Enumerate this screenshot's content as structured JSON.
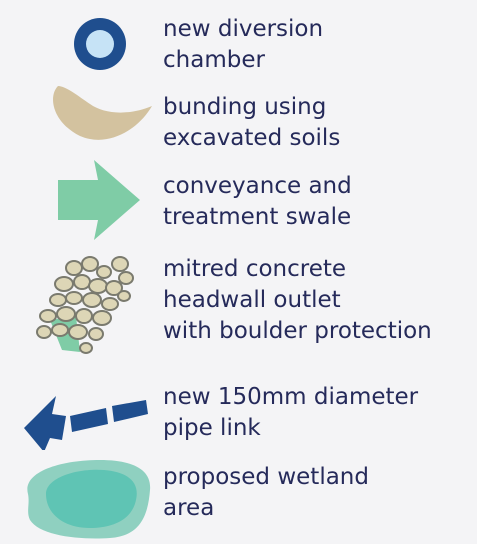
{
  "legend": {
    "items": [
      {
        "id": "diversion-chamber",
        "icon": "ring-icon",
        "lines": [
          "new diversion",
          "chamber"
        ]
      },
      {
        "id": "bunding",
        "icon": "crescent-icon",
        "lines": [
          "bunding using",
          "excavated soils"
        ]
      },
      {
        "id": "swale",
        "icon": "arrow-icon",
        "lines": [
          "conveyance and",
          "treatment swale"
        ]
      },
      {
        "id": "headwall",
        "icon": "boulders-icon",
        "lines": [
          "mitred concrete",
          "headwall outlet",
          "with boulder protection"
        ]
      },
      {
        "id": "pipe",
        "icon": "dashed-arrow-icon",
        "lines": [
          "new 150mm diameter",
          "pipe link"
        ]
      },
      {
        "id": "wetland",
        "icon": "wetland-icon",
        "lines": [
          "proposed wetland",
          "area"
        ]
      }
    ],
    "colors": {
      "text": "#252a5a",
      "navy": "#1f4e8e",
      "light_blue": "#c6e3f6",
      "tan": "#d3c29f",
      "mint": "#7fcca6",
      "boulder": "#ddd6b6",
      "boulder_outline": "#7a7a6e",
      "wetland_outer": "#8fd0c0",
      "wetland_inner": "#5fc4b4"
    }
  }
}
